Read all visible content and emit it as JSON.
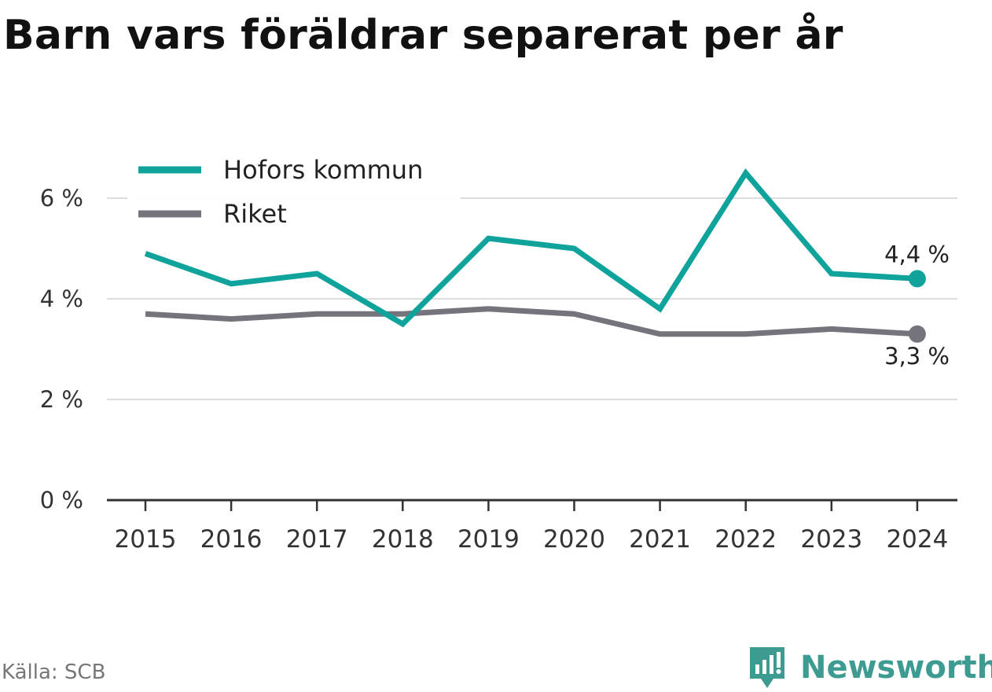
{
  "title": "Barn vars föräldrar separerat per år",
  "source": "Källa: SCB",
  "brand": {
    "name": "Newsworthy",
    "icon": "newsworthy-logo-icon",
    "color": "#3e9b92"
  },
  "chart_data": {
    "type": "line",
    "title": "Barn vars föräldrar separerat per år",
    "xlabel": "",
    "ylabel": "",
    "x": [
      "2015",
      "2016",
      "2017",
      "2018",
      "2019",
      "2020",
      "2021",
      "2022",
      "2023",
      "2024"
    ],
    "ylim": [
      0,
      7
    ],
    "yticks": [
      0,
      2,
      4,
      6
    ],
    "ytick_labels": [
      "0 %",
      "2 %",
      "4 %",
      "6 %"
    ],
    "grid": true,
    "legend_position": "top-left",
    "series": [
      {
        "name": "Hofors kommun",
        "color": "#0fa39b",
        "values": [
          4.9,
          4.3,
          4.5,
          3.5,
          5.2,
          5.0,
          3.8,
          6.5,
          4.5,
          4.4
        ],
        "end_label": "4,4 %"
      },
      {
        "name": "Riket",
        "color": "#75747c",
        "values": [
          3.7,
          3.6,
          3.7,
          3.7,
          3.8,
          3.7,
          3.3,
          3.3,
          3.4,
          3.3
        ],
        "end_label": "3,3 %"
      }
    ]
  }
}
